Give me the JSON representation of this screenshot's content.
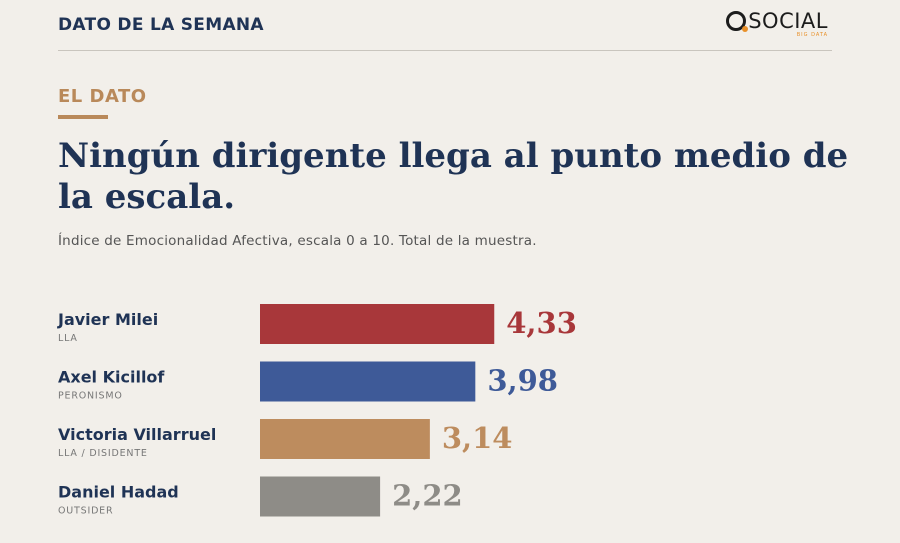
{
  "header": {
    "title": "DATO DE LA SEMANA",
    "logo_text": "SOCIAL",
    "logo_sub": "BIG DATA"
  },
  "section_label": "EL DATO",
  "headline": "Ningún dirigente llega al punto medio de la escala.",
  "subtitle": "Índice de Emocionalidad Afectiva, escala 0 a 10. Total de la muestra.",
  "chart_data": {
    "type": "bar",
    "orientation": "horizontal",
    "title": "Ningún dirigente llega al punto medio de la escala.",
    "subtitle": "Índice de Emocionalidad Afectiva, escala 0 a 10. Total de la muestra.",
    "xlim": [
      0,
      10
    ],
    "grid": false,
    "legend": "none",
    "categories": [
      "Javier Milei",
      "Axel Kicillof",
      "Victoria Villarruel",
      "Daniel Hadad"
    ],
    "parties": [
      "LLA",
      "PERONISMO",
      "LLA / DISIDENTE",
      "OUTSIDER"
    ],
    "values": [
      4.33,
      3.98,
      3.14,
      2.22
    ],
    "value_labels": [
      "4,33",
      "3,98",
      "3,14",
      "2,22"
    ],
    "colors": [
      "#a8373a",
      "#3e5a98",
      "#bd8c5e",
      "#8e8c87"
    ]
  }
}
